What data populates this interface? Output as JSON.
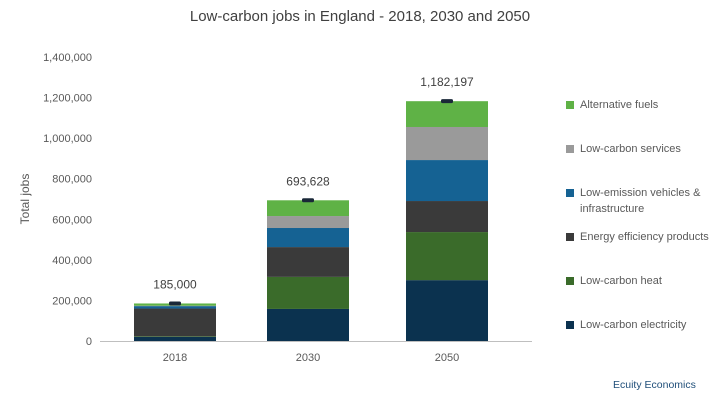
{
  "chart_data": {
    "type": "stacked-bar",
    "title": "Low-carbon jobs in England - 2018, 2030 and 2050",
    "xlabel": "",
    "ylabel": "Total jobs",
    "ylim": [
      0,
      1400000
    ],
    "yticks": [
      "0",
      "200,000",
      "400,000",
      "600,000",
      "800,000",
      "1,000,000",
      "1,200,000",
      "1,400,000"
    ],
    "grid": false,
    "legend_position": "right",
    "categories": [
      "2018",
      "2030",
      "2050"
    ],
    "totals": [
      185000,
      693628,
      1182197
    ],
    "total_labels": [
      "185,000",
      "693,628",
      "1,182,197"
    ],
    "series": [
      {
        "name": "Low-carbon electricity",
        "color": "#0b324f",
        "values": [
          20000,
          158000,
          300000
        ]
      },
      {
        "name": "Low-carbon heat",
        "color": "#3a6b2a",
        "values": [
          3000,
          158000,
          237000
        ]
      },
      {
        "name": "Energy efficiency products",
        "color": "#3a3a3a",
        "values": [
          137000,
          147000,
          153000
        ]
      },
      {
        "name": "Low-emission vehicles & infrastructure",
        "color": "#156293",
        "values": [
          12000,
          94000,
          202000
        ]
      },
      {
        "name": "Low-carbon services",
        "color": "#9a9a9a",
        "values": [
          2000,
          59000,
          163000
        ]
      },
      {
        "name": "Alternative fuels",
        "color": "#5fb246",
        "values": [
          11000,
          77628,
          127197
        ]
      }
    ]
  },
  "footer": "Ecuity Economics"
}
